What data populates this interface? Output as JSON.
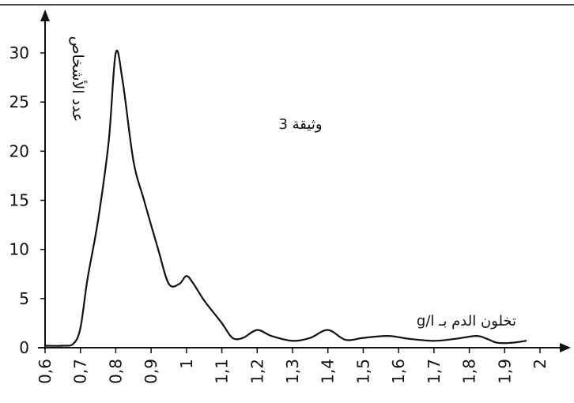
{
  "chart_data": {
    "type": "line",
    "title": "",
    "document_label": "وثيقة 3",
    "xlabel": "تخلون الدم بـ g/l",
    "ylabel": "عدد الأشخاص",
    "xlim": [
      0.6,
      2.0
    ],
    "ylim": [
      0,
      30
    ],
    "x_ticks": [
      "0,6",
      "0,7",
      "0,8",
      "0,9",
      "1",
      "1,1",
      "1,2",
      "1,3",
      "1,4",
      "1,5",
      "1,6",
      "1,7",
      "1,8",
      "1,9",
      "2"
    ],
    "y_ticks": [
      "0",
      "5",
      "10",
      "15",
      "20",
      "25",
      "30"
    ],
    "grid": false,
    "series": [
      {
        "x": [
          0.6,
          0.65,
          0.68,
          0.7,
          0.72,
          0.75,
          0.78,
          0.8,
          0.82,
          0.85,
          0.88,
          0.92,
          0.95,
          0.98,
          1.0,
          1.02,
          1.05,
          1.1,
          1.13,
          1.16,
          1.2,
          1.24,
          1.3,
          1.35,
          1.4,
          1.45,
          1.5,
          1.57,
          1.63,
          1.7,
          1.76,
          1.82,
          1.85,
          1.88,
          1.92,
          1.96
        ],
        "values": [
          0.2,
          0.2,
          0.4,
          2,
          7,
          13,
          21,
          30,
          27,
          19,
          15,
          10,
          6.5,
          6.5,
          7.3,
          6.5,
          4.8,
          2.5,
          1.0,
          1.0,
          1.8,
          1.2,
          0.7,
          1.0,
          1.8,
          0.8,
          1.0,
          1.2,
          0.9,
          0.7,
          0.9,
          1.2,
          0.9,
          0.5,
          0.5,
          0.7
        ]
      }
    ]
  }
}
